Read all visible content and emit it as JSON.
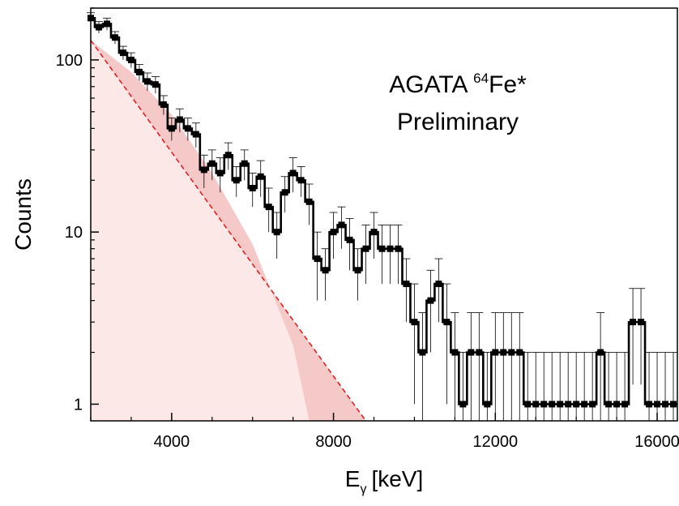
{
  "chart_data": {
    "type": "line",
    "title": "",
    "xlabel": "E",
    "xlabel_subscript": "γ",
    "xlabel_unit": "[keV]",
    "ylabel": "Counts",
    "xlim": [
      2000,
      16500
    ],
    "ylim": [
      0.8,
      200
    ],
    "yscale": "log",
    "grid": false,
    "legend": "none",
    "x_ticks": [
      4000,
      8000,
      12000,
      16000
    ],
    "x_tick_labels": [
      "4000",
      "8000",
      "12000",
      "16000"
    ],
    "y_ticks": [
      1,
      10,
      100
    ],
    "y_tick_labels": [
      "1",
      "10",
      "100"
    ],
    "annotation": {
      "line1_prefix": "AGATA ",
      "line1_sup": "64",
      "line1_suffix": "Fe*",
      "line2": "Preliminary"
    },
    "series": [
      {
        "style": "histogram",
        "color": "#000000",
        "x": [
          2000,
          2200,
          2400,
          2600,
          2800,
          3000,
          3200,
          3400,
          3600,
          3800,
          4000,
          4200,
          4400,
          4600,
          4800,
          5000,
          5200,
          5400,
          5600,
          5800,
          6000,
          6200,
          6400,
          6600,
          6800,
          7000,
          7200,
          7400,
          7600,
          7800,
          8000,
          8200,
          8400,
          8600,
          8800,
          9000,
          9200,
          9400,
          9600,
          9800,
          10000,
          10200,
          10400,
          10600,
          10800,
          11000,
          11200,
          11400,
          11600,
          11800,
          12000,
          12200,
          12400,
          12600,
          12800,
          13000,
          13200,
          13400,
          13600,
          13800,
          14000,
          14200,
          14400,
          14600,
          14800,
          15000,
          15200,
          15400,
          15600,
          15800,
          16000,
          16200,
          16400
        ],
        "y": [
          175,
          155,
          162,
          135,
          110,
          100,
          85,
          75,
          72,
          55,
          40,
          45,
          40,
          37,
          23,
          25,
          22,
          28,
          20,
          25,
          18,
          21,
          14,
          10,
          17,
          22,
          20,
          15,
          7,
          6,
          10,
          11,
          9,
          6,
          8,
          10,
          8,
          8,
          8,
          5,
          3,
          2,
          4,
          5,
          3,
          2,
          1,
          2,
          2,
          1,
          2,
          2,
          2,
          2,
          1,
          1,
          1,
          1,
          1,
          1,
          1,
          1,
          1,
          2,
          1,
          1,
          1,
          3,
          3,
          1,
          1,
          1,
          1
        ],
        "errors": [
          13,
          12,
          13,
          11,
          10,
          10,
          9,
          9,
          8,
          7,
          6,
          7,
          6,
          6,
          5,
          5,
          5,
          5,
          4,
          5,
          4,
          5,
          4,
          3,
          4,
          5,
          4,
          4,
          3,
          2,
          3,
          3,
          3,
          2,
          3,
          3,
          3,
          3,
          3,
          2,
          2,
          1.4,
          2,
          2,
          2,
          1.4,
          1,
          1.4,
          1.4,
          1,
          1.4,
          1.4,
          1.4,
          1.4,
          1,
          1,
          1,
          1,
          1,
          1,
          1,
          1,
          1,
          1.4,
          1,
          1,
          1,
          1.7,
          1.7,
          1,
          1,
          1,
          1
        ]
      },
      {
        "style": "dashed",
        "color": "#e02020",
        "x": [
          2000,
          8800
        ],
        "y": [
          130,
          0.8
        ]
      }
    ],
    "band": {
      "color": "#f6c9c9",
      "upper": {
        "x": [
          2000,
          8800
        ],
        "y": [
          130,
          0.8
        ]
      },
      "lower": {
        "x": [
          2000,
          3000,
          4000,
          5000,
          6000,
          7000,
          7400
        ],
        "y": [
          130,
          85,
          48,
          22,
          8.5,
          2.2,
          0.8
        ]
      }
    },
    "band_light": {
      "color": "#fde8e8",
      "upper": {
        "x": [
          2000,
          3000,
          4000,
          5000,
          6000,
          7000,
          7400
        ],
        "y": [
          130,
          85,
          48,
          22,
          8.5,
          2.2,
          0.8
        ]
      }
    }
  }
}
